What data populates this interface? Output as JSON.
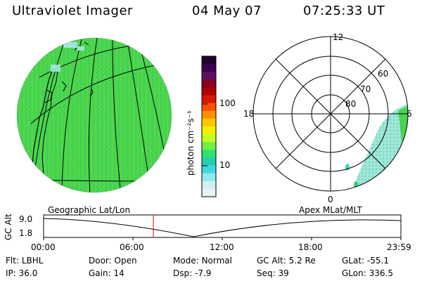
{
  "header": {
    "title": "Ultraviolet Imager",
    "date": "04 May 07",
    "time": "07:25:33 UT"
  },
  "colorbar": {
    "unit_label": "photon cm⁻²s⁻¹",
    "tick_labels": [
      "100",
      "10"
    ],
    "colors": [
      "#200030",
      "#3a0050",
      "#601060",
      "#8a0020",
      "#b40000",
      "#d81800",
      "#ff5000",
      "#ff9000",
      "#ffc800",
      "#f0f000",
      "#c0ff20",
      "#70f040",
      "#30e070",
      "#20d0b0",
      "#40d8e0",
      "#90e8f0",
      "#d0f0f0",
      "#e8f4f4"
    ]
  },
  "geo_map": {
    "label": "Geographic Lat/Lon",
    "fill_color": "#46d24a"
  },
  "polar_map": {
    "label": "Apex MLat/MLT",
    "mlt_labels": [
      "12",
      "18",
      "6",
      "0"
    ],
    "lat_labels": [
      "60",
      "70",
      "80"
    ]
  },
  "altitude_plot": {
    "axis_label": "GC Alt",
    "y_ticks": [
      "9.0",
      "1.8"
    ],
    "x_ticks": [
      "00:00",
      "06:00",
      "12:00",
      "18:00",
      "23:59"
    ],
    "marker_color": "#e00000"
  },
  "info": {
    "row1": [
      {
        "label": "Flt:",
        "value": "LBHL"
      },
      {
        "label": "Door:",
        "value": "Open"
      },
      {
        "label": "Mode:",
        "value": "Normal"
      },
      {
        "label": "GC Alt:",
        "value": "5.2 Re"
      },
      {
        "label": "GLat:",
        "value": "-55.1"
      }
    ],
    "row2": [
      {
        "label": "IP:",
        "value": "36.0"
      },
      {
        "label": "Gain:",
        "value": "14"
      },
      {
        "label": "Dsp:",
        "value": "-7.9"
      },
      {
        "label": "Seq:",
        "value": "39"
      },
      {
        "label": "GLon:",
        "value": "336.5"
      }
    ]
  }
}
